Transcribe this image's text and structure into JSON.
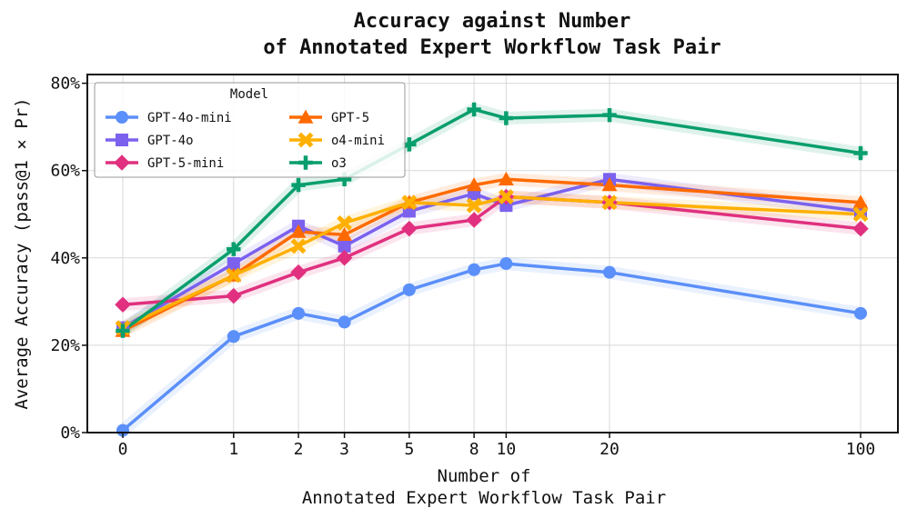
{
  "chart_data": {
    "type": "line",
    "title": [
      "Accuracy against Number",
      "of Annotated Expert Workflow Task Pair"
    ],
    "xlabel": [
      "Number of",
      "Annotated Expert Workflow Task Pair"
    ],
    "ylabel": "Average Accuracy (pass@1 × Pr)",
    "x": [
      0,
      1,
      2,
      3,
      5,
      8,
      10,
      20,
      100
    ],
    "x_tick_labels": [
      "0",
      "1",
      "2",
      "3",
      "5",
      "8",
      "10",
      "20",
      "100"
    ],
    "y_ticks": [
      0,
      20,
      40,
      60,
      80
    ],
    "y_tick_labels": [
      "0%",
      "20%",
      "40%",
      "60%",
      "80%"
    ],
    "ylim": [
      0,
      82
    ],
    "grid": true,
    "legend": {
      "title": "Model",
      "placement": "top-left",
      "columns": 2
    },
    "series": [
      {
        "name": "GPT-4o-mini",
        "color": "#5b8ff9",
        "marker": "circle",
        "values": [
          0.5,
          22,
          27.3,
          25.3,
          32.7,
          37.3,
          38.7,
          36.7,
          27.3
        ]
      },
      {
        "name": "GPT-4o",
        "color": "#7b61ee",
        "marker": "square",
        "values": [
          24,
          38.7,
          47.3,
          42.7,
          50.7,
          54.7,
          52,
          58,
          50.7
        ]
      },
      {
        "name": "GPT-5-mini",
        "color": "#e0307f",
        "marker": "diamond",
        "values": [
          29.3,
          31.3,
          36.7,
          40,
          46.7,
          48.7,
          54,
          52.7,
          46.7
        ]
      },
      {
        "name": "GPT-5",
        "color": "#ff6a00",
        "marker": "triangle",
        "values": [
          23.3,
          36,
          46,
          45.3,
          52.7,
          56.7,
          58,
          56.7,
          52.7
        ]
      },
      {
        "name": "o4-mini",
        "color": "#ffb000",
        "marker": "x",
        "values": [
          24,
          36,
          42.7,
          48,
          52.7,
          52,
          54,
          52.7,
          50
        ]
      },
      {
        "name": "o3",
        "color": "#089e6d",
        "marker": "plus",
        "values": [
          23.3,
          42,
          56.7,
          58,
          66,
          74,
          72,
          72.7,
          64
        ]
      }
    ]
  }
}
